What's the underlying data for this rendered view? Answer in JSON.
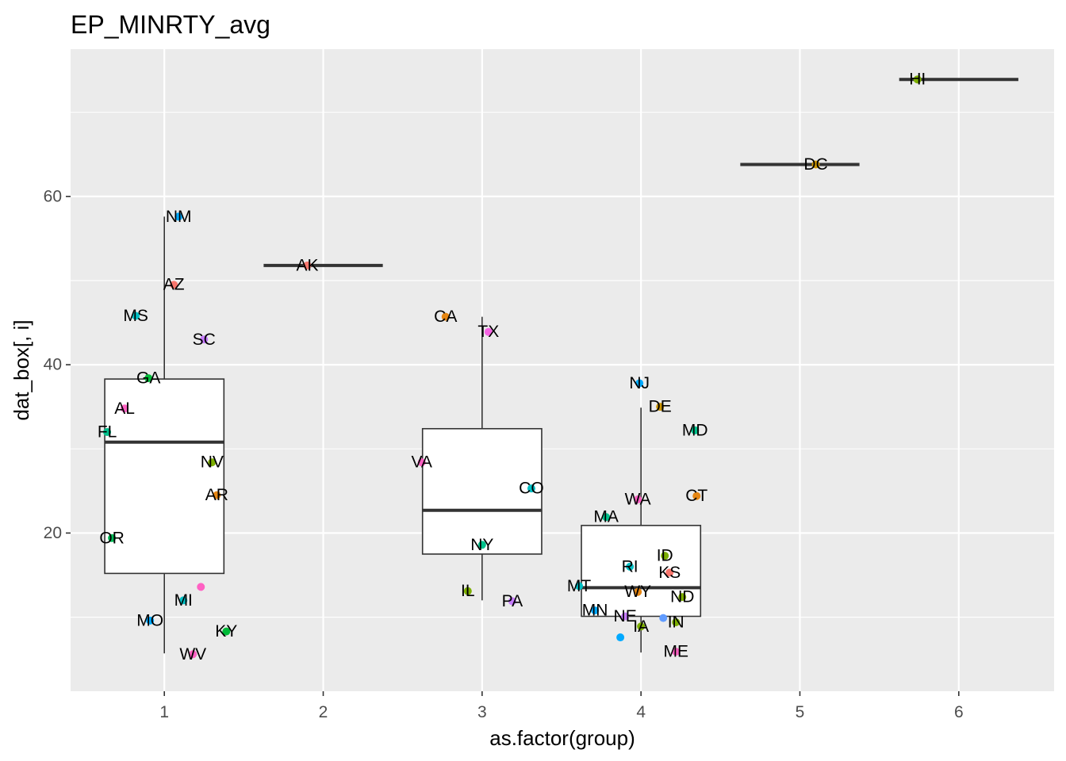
{
  "chart_data": {
    "type": "box",
    "title": "EP_MINRTY_avg",
    "xlabel": "as.factor(group)",
    "ylabel": "dat_box[, i]",
    "x_ticks": [
      "1",
      "2",
      "3",
      "4",
      "5",
      "6"
    ],
    "y_ticks": [
      20,
      40,
      60
    ],
    "xlim": [
      0.41,
      6.6
    ],
    "ylim": [
      1.2,
      77.5
    ],
    "grid": true,
    "legend": "none",
    "colors": {
      "panel": "#ebebeb",
      "grid": "#ffffff",
      "box_line": "#333333",
      "box_fill": "#ffffff",
      "text": "#000000",
      "tick_text": "#4d4d4d",
      "tick_mark": "#333333"
    },
    "boxes": [
      {
        "group": 1,
        "min": 5.7,
        "q1": 15.2,
        "median": 30.8,
        "q3": 38.3,
        "max": 57.6
      },
      {
        "group": 2,
        "min": 51.8,
        "q1": 51.8,
        "median": 51.8,
        "q3": 51.8,
        "max": 51.8
      },
      {
        "group": 3,
        "min": 12.0,
        "q1": 17.5,
        "median": 22.7,
        "q3": 32.4,
        "max": 45.7
      },
      {
        "group": 4,
        "min": 5.8,
        "q1": 10.1,
        "median": 13.5,
        "q3": 20.9,
        "max": 34.9
      },
      {
        "group": 5,
        "min": 63.8,
        "q1": 63.8,
        "median": 63.8,
        "q3": 63.8,
        "max": 63.8
      },
      {
        "group": 6,
        "min": 73.9,
        "q1": 73.9,
        "median": 73.9,
        "q3": 73.9,
        "max": 73.9
      }
    ],
    "points": [
      {
        "label": "NM",
        "group": 1,
        "x": 1.09,
        "y": 57.6,
        "color": "#00a9ff"
      },
      {
        "label": "AZ",
        "group": 1,
        "x": 1.06,
        "y": 49.5,
        "color": "#f8766d"
      },
      {
        "label": "MS",
        "group": 1,
        "x": 0.82,
        "y": 45.8,
        "color": "#00bfc4"
      },
      {
        "label": "SC",
        "group": 1,
        "x": 1.25,
        "y": 43.0,
        "color": "#c77cff"
      },
      {
        "label": "GA",
        "group": 1,
        "x": 0.9,
        "y": 38.4,
        "color": "#00ba38"
      },
      {
        "label": "AL",
        "group": 1,
        "x": 0.75,
        "y": 34.8,
        "color": "#ff61c3"
      },
      {
        "label": "FL",
        "group": 1,
        "x": 0.64,
        "y": 32.0,
        "color": "#00c08b"
      },
      {
        "label": "NV",
        "group": 1,
        "x": 1.3,
        "y": 28.4,
        "color": "#7cae00"
      },
      {
        "label": "AR",
        "group": 1,
        "x": 1.33,
        "y": 24.5,
        "color": "#e68613"
      },
      {
        "label": "OR",
        "group": 1,
        "x": 0.67,
        "y": 19.4,
        "color": "#00bc56"
      },
      {
        "label": "",
        "group": 1,
        "x": 1.23,
        "y": 13.6,
        "color": "#ff61c3"
      },
      {
        "label": "MI",
        "group": 1,
        "x": 1.12,
        "y": 12.0,
        "color": "#00bfc4"
      },
      {
        "label": "MO",
        "group": 1,
        "x": 0.91,
        "y": 9.6,
        "color": "#00a9ff"
      },
      {
        "label": "KY",
        "group": 1,
        "x": 1.39,
        "y": 8.3,
        "color": "#00ba38"
      },
      {
        "label": "WV",
        "group": 1,
        "x": 1.18,
        "y": 5.6,
        "color": "#ff61c3"
      },
      {
        "label": "AK",
        "group": 2,
        "x": 1.9,
        "y": 51.8,
        "color": "#f8766d"
      },
      {
        "label": "CA",
        "group": 3,
        "x": 2.77,
        "y": 45.7,
        "color": "#e68613"
      },
      {
        "label": "TX",
        "group": 3,
        "x": 3.04,
        "y": 43.9,
        "color": "#f564e3"
      },
      {
        "label": "VA",
        "group": 3,
        "x": 2.62,
        "y": 28.4,
        "color": "#ff61c3"
      },
      {
        "label": "CO",
        "group": 3,
        "x": 3.31,
        "y": 25.3,
        "color": "#00bfc4"
      },
      {
        "label": "NY",
        "group": 3,
        "x": 3.0,
        "y": 18.6,
        "color": "#00c08b"
      },
      {
        "label": "IL",
        "group": 3,
        "x": 2.91,
        "y": 13.1,
        "color": "#7cae00"
      },
      {
        "label": "PA",
        "group": 3,
        "x": 3.19,
        "y": 11.9,
        "color": "#c77cff"
      },
      {
        "label": "NJ",
        "group": 4,
        "x": 3.99,
        "y": 37.8,
        "color": "#00a9ff"
      },
      {
        "label": "DE",
        "group": 4,
        "x": 4.12,
        "y": 35.0,
        "color": "#cd9600"
      },
      {
        "label": "MD",
        "group": 4,
        "x": 4.34,
        "y": 32.2,
        "color": "#00c08b"
      },
      {
        "label": "CT",
        "group": 4,
        "x": 4.35,
        "y": 24.4,
        "color": "#e68613"
      },
      {
        "label": "WA",
        "group": 4,
        "x": 3.98,
        "y": 24.0,
        "color": "#ff61c3"
      },
      {
        "label": "MA",
        "group": 4,
        "x": 3.78,
        "y": 21.9,
        "color": "#00c08b"
      },
      {
        "label": "ID",
        "group": 4,
        "x": 4.15,
        "y": 17.3,
        "color": "#7cae00"
      },
      {
        "label": "RI",
        "group": 4,
        "x": 3.93,
        "y": 16.0,
        "color": "#00bfc4"
      },
      {
        "label": "KS",
        "group": 4,
        "x": 4.18,
        "y": 15.3,
        "color": "#f8766d"
      },
      {
        "label": "MT",
        "group": 4,
        "x": 3.61,
        "y": 13.7,
        "color": "#00bfc4"
      },
      {
        "label": "WY",
        "group": 4,
        "x": 3.98,
        "y": 13.0,
        "color": "#e68613"
      },
      {
        "label": "ND",
        "group": 4,
        "x": 4.26,
        "y": 12.4,
        "color": "#7cae00"
      },
      {
        "label": "MN",
        "group": 4,
        "x": 3.71,
        "y": 10.8,
        "color": "#00a9ff"
      },
      {
        "label": "NE",
        "group": 4,
        "x": 3.9,
        "y": 10.1,
        "color": "#c77cff"
      },
      {
        "label": "",
        "group": 4,
        "x": 4.14,
        "y": 9.9,
        "color": "#619cff"
      },
      {
        "label": "IN",
        "group": 4,
        "x": 4.22,
        "y": 9.4,
        "color": "#7cae00"
      },
      {
        "label": "IA",
        "group": 4,
        "x": 4.0,
        "y": 8.9,
        "color": "#7cae00"
      },
      {
        "label": "",
        "group": 4,
        "x": 3.87,
        "y": 7.6,
        "color": "#00a9ff"
      },
      {
        "label": "ME",
        "group": 4,
        "x": 4.22,
        "y": 5.9,
        "color": "#ff61c3"
      },
      {
        "label": "DC",
        "group": 5,
        "x": 5.1,
        "y": 63.8,
        "color": "#cd9600"
      },
      {
        "label": "HI",
        "group": 6,
        "x": 5.74,
        "y": 73.9,
        "color": "#7cae00"
      }
    ]
  }
}
